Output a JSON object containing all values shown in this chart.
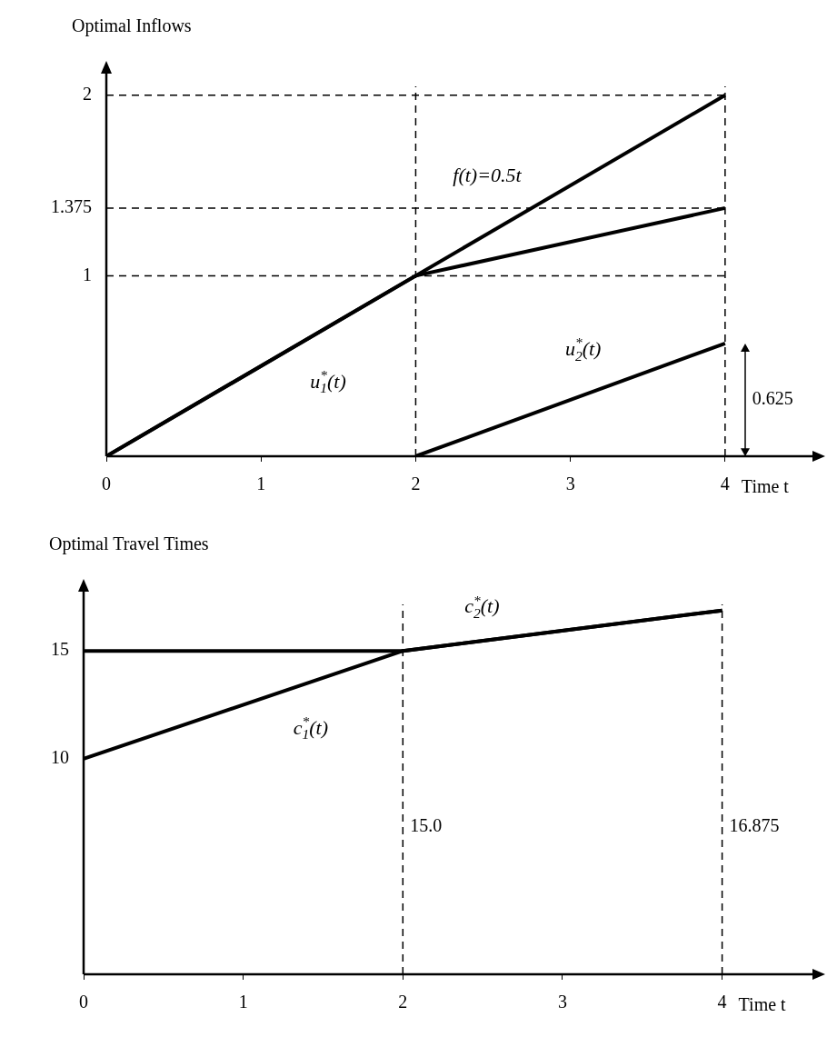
{
  "chart_data": [
    {
      "type": "line",
      "ylabel": "Optimal Inflows",
      "xlabel": "Time t",
      "xlim": [
        0,
        4.6
      ],
      "xticks": [
        0,
        1,
        2,
        3,
        4
      ],
      "ylim": [
        0,
        2.15
      ],
      "yticks": [
        1,
        1.375,
        2
      ],
      "grid": false,
      "legend": false,
      "marker": "none",
      "line_style": "solid",
      "series": [
        {
          "name": "f(t)=0.5t",
          "color": "#000000",
          "x": [
            0,
            4
          ],
          "values": [
            0,
            2
          ]
        },
        {
          "name": "u$^{*}$$_{1}$(t)",
          "color": "#000000",
          "x": [
            0,
            2,
            4
          ],
          "values": [
            0,
            1,
            1.375
          ]
        },
        {
          "name": "u$^{*}$$_{2}$(t)",
          "color": "#000000",
          "x": [
            2,
            4
          ],
          "values": [
            0,
            0.625
          ]
        }
      ],
      "ref_lines": [
        {
          "axis": "y",
          "value": 1,
          "line_style": "dashed"
        },
        {
          "axis": "y",
          "value": 1.375,
          "line_style": "dashed"
        },
        {
          "axis": "y",
          "value": 2,
          "line_style": "dashed"
        },
        {
          "axis": "x",
          "value": 2,
          "line_style": "dashed"
        },
        {
          "axis": "x",
          "value": 4,
          "line_style": "dashed"
        }
      ],
      "annotations": [
        {
          "text": "0.625",
          "x": 4,
          "y": 0.625
        }
      ]
    },
    {
      "type": "line",
      "ylabel": "Optimal Travel Times",
      "xlabel": "Time t",
      "xlim": [
        0,
        4.6
      ],
      "xticks": [
        0,
        1,
        2,
        3,
        4
      ],
      "ylim": [
        0,
        18
      ],
      "yticks": [
        10,
        15
      ],
      "grid": false,
      "legend": false,
      "marker": "none",
      "line_style": "solid",
      "series": [
        {
          "name": "c$^{*}$$_{2}$(t)",
          "color": "#000000",
          "x": [
            0,
            2,
            4
          ],
          "values": [
            15,
            15,
            16.875
          ]
        },
        {
          "name": "c$^{*}$$_{1}$(t)",
          "color": "#000000",
          "x": [
            0,
            2,
            4
          ],
          "values": [
            10,
            15,
            16.875
          ]
        }
      ],
      "ref_lines": [
        {
          "axis": "x",
          "value": 2,
          "line_style": "dashed"
        },
        {
          "axis": "x",
          "value": 4,
          "line_style": "dashed"
        }
      ],
      "annotations": [
        "15.0",
        "16.875"
      ]
    }
  ]
}
